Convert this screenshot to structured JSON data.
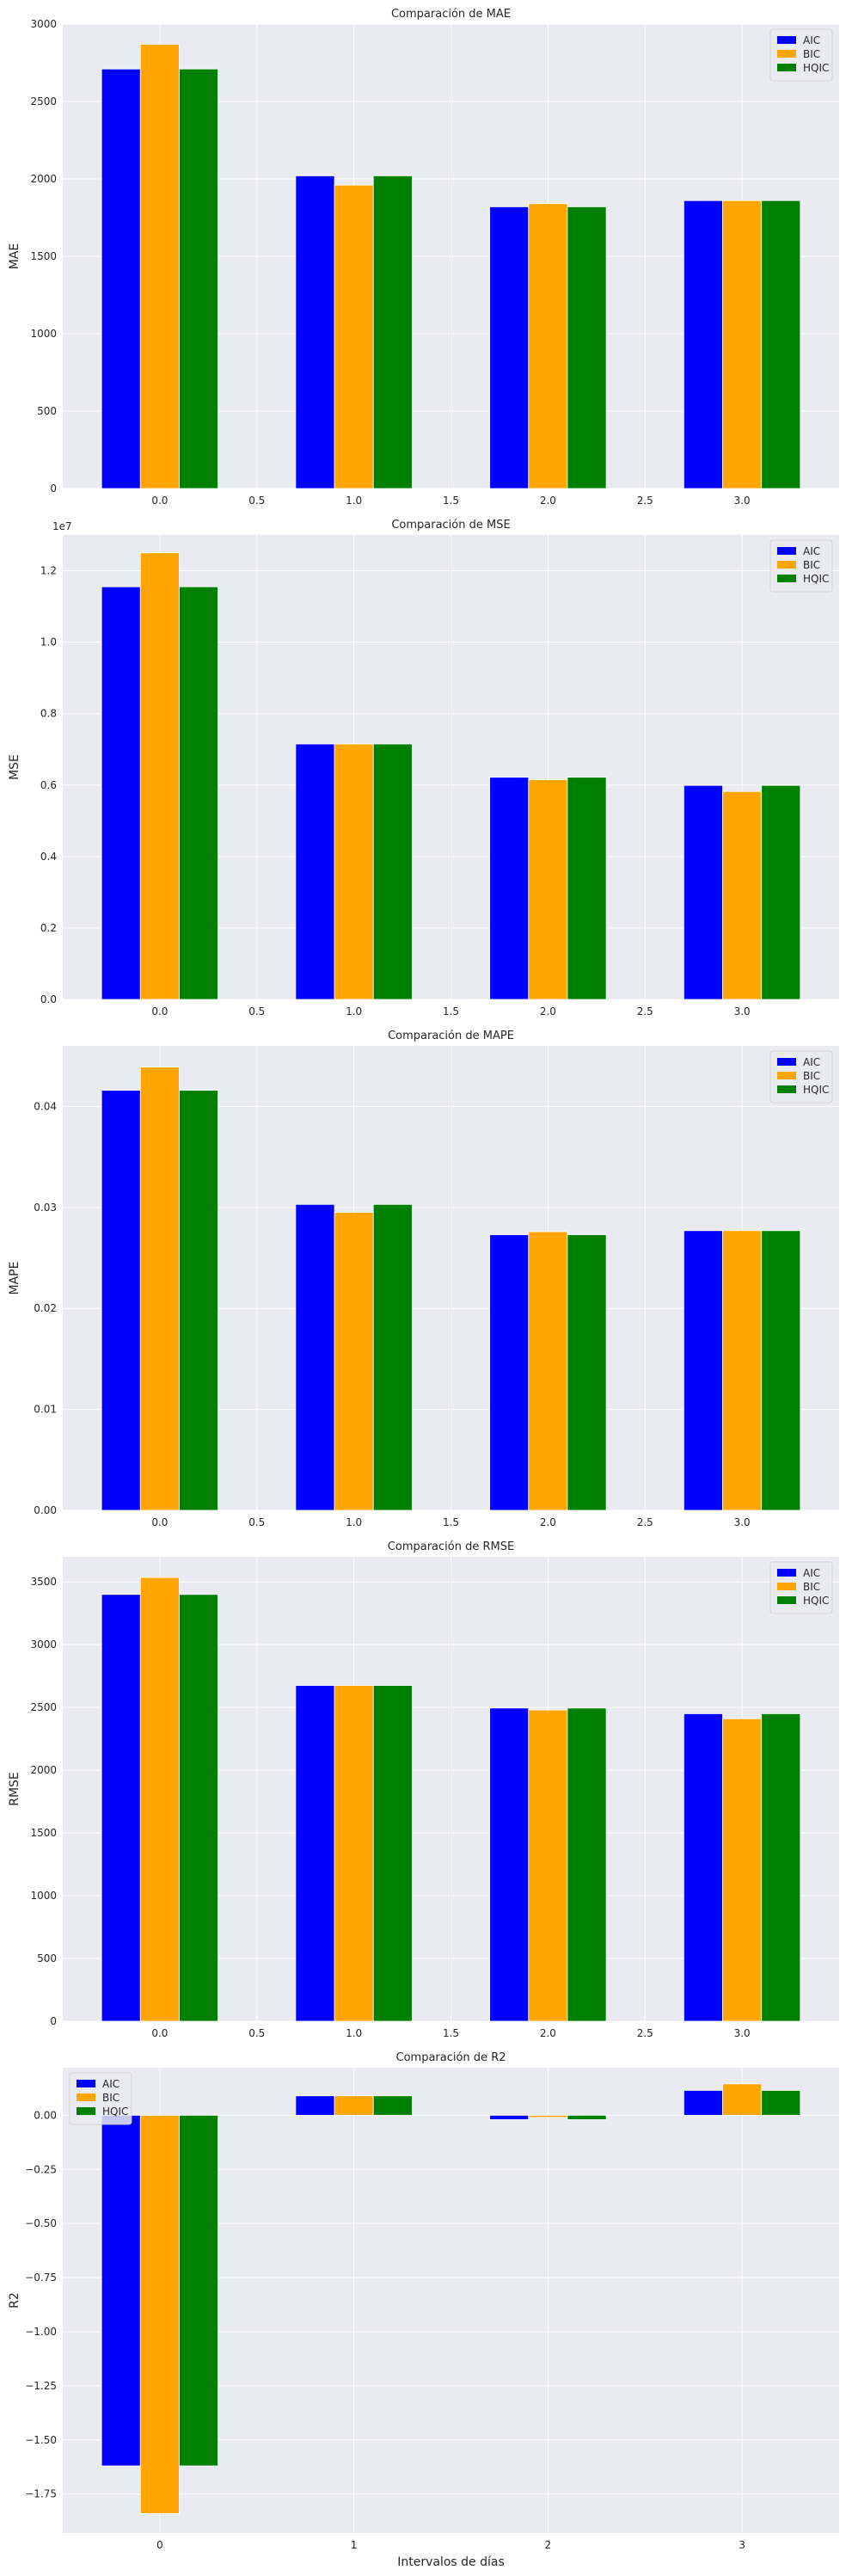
{
  "series_colors": {
    "AIC": "#0000ff",
    "BIC": "#ffa500",
    "HQIC": "#008000"
  },
  "background_color": "#eaeaf2",
  "chart_data": [
    {
      "type": "bar",
      "title": "Comparación de MAE",
      "ylabel": "MAE",
      "xlabel": "",
      "x_positions": [
        0,
        1,
        2,
        3
      ],
      "series": [
        {
          "name": "AIC",
          "values": [
            2710,
            2020,
            1820,
            1860
          ]
        },
        {
          "name": "BIC",
          "values": [
            2870,
            1960,
            1840,
            1860
          ]
        },
        {
          "name": "HQIC",
          "values": [
            2710,
            2020,
            1820,
            1860
          ]
        }
      ],
      "xlim": [
        -0.5,
        3.5
      ],
      "ylim": [
        0,
        3000
      ],
      "xticks": [
        0.0,
        0.5,
        1.0,
        1.5,
        2.0,
        2.5,
        3.0
      ],
      "xtick_labels": [
        "0.0",
        "0.5",
        "1.0",
        "1.5",
        "2.0",
        "2.5",
        "3.0"
      ],
      "yticks": [
        0,
        500,
        1000,
        1500,
        2000,
        2500,
        3000
      ],
      "ytick_labels": [
        "0",
        "500",
        "1000",
        "1500",
        "2000",
        "2500",
        "3000"
      ],
      "offset_text": "",
      "legend": "upper right",
      "grid": true
    },
    {
      "type": "bar",
      "title": "Comparación de MSE",
      "ylabel": "MSE",
      "xlabel": "",
      "x_positions": [
        0,
        1,
        2,
        3
      ],
      "series": [
        {
          "name": "AIC",
          "values": [
            11550000,
            7150000,
            6220000,
            5990000
          ]
        },
        {
          "name": "BIC",
          "values": [
            12500000,
            7150000,
            6150000,
            5820000
          ]
        },
        {
          "name": "HQIC",
          "values": [
            11550000,
            7150000,
            6220000,
            5990000
          ]
        }
      ],
      "xlim": [
        -0.5,
        3.5
      ],
      "ylim": [
        0,
        13000000
      ],
      "xticks": [
        0.0,
        0.5,
        1.0,
        1.5,
        2.0,
        2.5,
        3.0
      ],
      "xtick_labels": [
        "0.0",
        "0.5",
        "1.0",
        "1.5",
        "2.0",
        "2.5",
        "3.0"
      ],
      "yticks": [
        0,
        2000000,
        4000000,
        6000000,
        8000000,
        10000000,
        12000000
      ],
      "ytick_labels": [
        "0.0",
        "0.2",
        "0.4",
        "0.6",
        "0.8",
        "1.0",
        "1.2"
      ],
      "offset_text": "1e7",
      "legend": "upper right",
      "grid": true
    },
    {
      "type": "bar",
      "title": "Comparación de MAPE",
      "ylabel": "MAPE",
      "xlabel": "",
      "x_positions": [
        0,
        1,
        2,
        3
      ],
      "series": [
        {
          "name": "AIC",
          "values": [
            0.0416,
            0.0303,
            0.0273,
            0.0277
          ]
        },
        {
          "name": "BIC",
          "values": [
            0.0439,
            0.0295,
            0.0276,
            0.0277
          ]
        },
        {
          "name": "HQIC",
          "values": [
            0.0416,
            0.0303,
            0.0273,
            0.0277
          ]
        }
      ],
      "xlim": [
        -0.5,
        3.5
      ],
      "ylim": [
        0,
        0.046
      ],
      "xticks": [
        0.0,
        0.5,
        1.0,
        1.5,
        2.0,
        2.5,
        3.0
      ],
      "xtick_labels": [
        "0.0",
        "0.5",
        "1.0",
        "1.5",
        "2.0",
        "2.5",
        "3.0"
      ],
      "yticks": [
        0,
        0.01,
        0.02,
        0.03,
        0.04
      ],
      "ytick_labels": [
        "0.00",
        "0.01",
        "0.02",
        "0.03",
        "0.04"
      ],
      "offset_text": "",
      "legend": "upper right",
      "grid": true
    },
    {
      "type": "bar",
      "title": "Comparación de RMSE",
      "ylabel": "RMSE",
      "xlabel": "",
      "x_positions": [
        0,
        1,
        2,
        3
      ],
      "series": [
        {
          "name": "AIC",
          "values": [
            3400,
            2675,
            2495,
            2450
          ]
        },
        {
          "name": "BIC",
          "values": [
            3535,
            2675,
            2480,
            2410
          ]
        },
        {
          "name": "HQIC",
          "values": [
            3400,
            2675,
            2495,
            2450
          ]
        }
      ],
      "xlim": [
        -0.5,
        3.5
      ],
      "ylim": [
        0,
        3700
      ],
      "xticks": [
        0.0,
        0.5,
        1.0,
        1.5,
        2.0,
        2.5,
        3.0
      ],
      "xtick_labels": [
        "0.0",
        "0.5",
        "1.0",
        "1.5",
        "2.0",
        "2.5",
        "3.0"
      ],
      "yticks": [
        0,
        500,
        1000,
        1500,
        2000,
        2500,
        3000,
        3500
      ],
      "ytick_labels": [
        "0",
        "500",
        "1000",
        "1500",
        "2000",
        "2500",
        "3000",
        "3500"
      ],
      "offset_text": "",
      "legend": "upper right",
      "grid": true
    },
    {
      "type": "bar",
      "title": "Comparación de R2",
      "ylabel": "R2",
      "xlabel": "Intervalos de días",
      "x_positions": [
        0,
        1,
        2,
        3
      ],
      "series": [
        {
          "name": "AIC",
          "values": [
            -1.62,
            0.09,
            -0.02,
            0.115
          ]
        },
        {
          "name": "BIC",
          "values": [
            -1.84,
            0.09,
            -0.01,
            0.145
          ]
        },
        {
          "name": "HQIC",
          "values": [
            -1.62,
            0.09,
            -0.02,
            0.115
          ]
        }
      ],
      "xlim": [
        -0.5,
        3.5
      ],
      "ylim": [
        -1.93,
        0.22
      ],
      "xticks": [
        0,
        1,
        2,
        3
      ],
      "xtick_labels": [
        "0",
        "1",
        "2",
        "3"
      ],
      "yticks": [
        0.0,
        -0.25,
        -0.5,
        -0.75,
        -1.0,
        -1.25,
        -1.5,
        -1.75
      ],
      "ytick_labels": [
        "0.00",
        "−0.25",
        "−0.50",
        "−0.75",
        "−1.00",
        "−1.25",
        "−1.50",
        "−1.75"
      ],
      "offset_text": "",
      "legend": "upper left",
      "grid": true
    }
  ]
}
